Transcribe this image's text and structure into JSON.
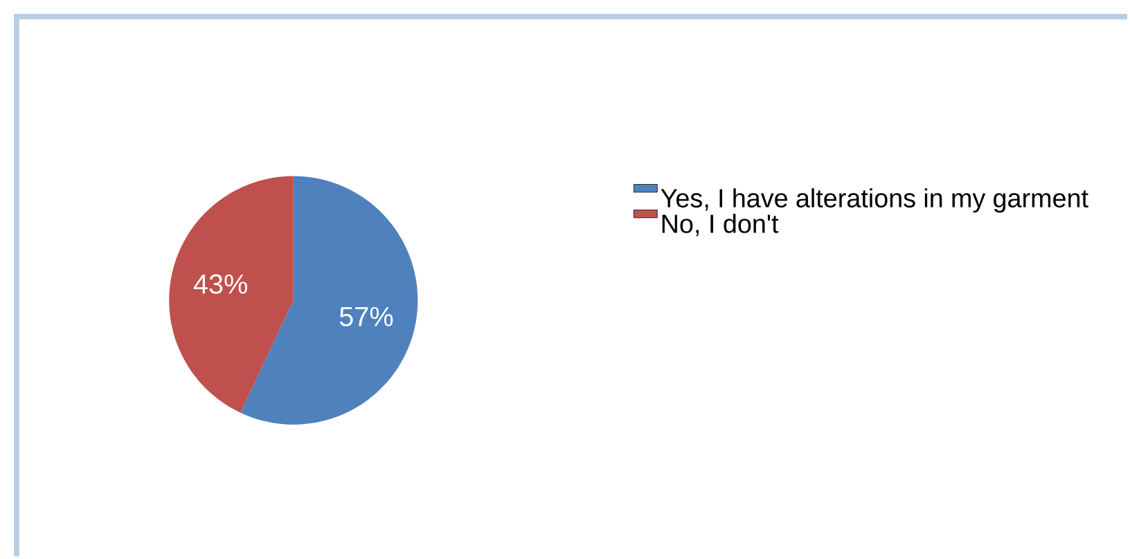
{
  "chart_data": {
    "type": "pie",
    "categories": [
      "Yes, I have alterations in  my garment",
      "No, I don't"
    ],
    "values": [
      57,
      43
    ],
    "colors": [
      "#4f81bd",
      "#c0504d"
    ],
    "value_labels": [
      "57%",
      "43%"
    ],
    "legend": "right"
  }
}
